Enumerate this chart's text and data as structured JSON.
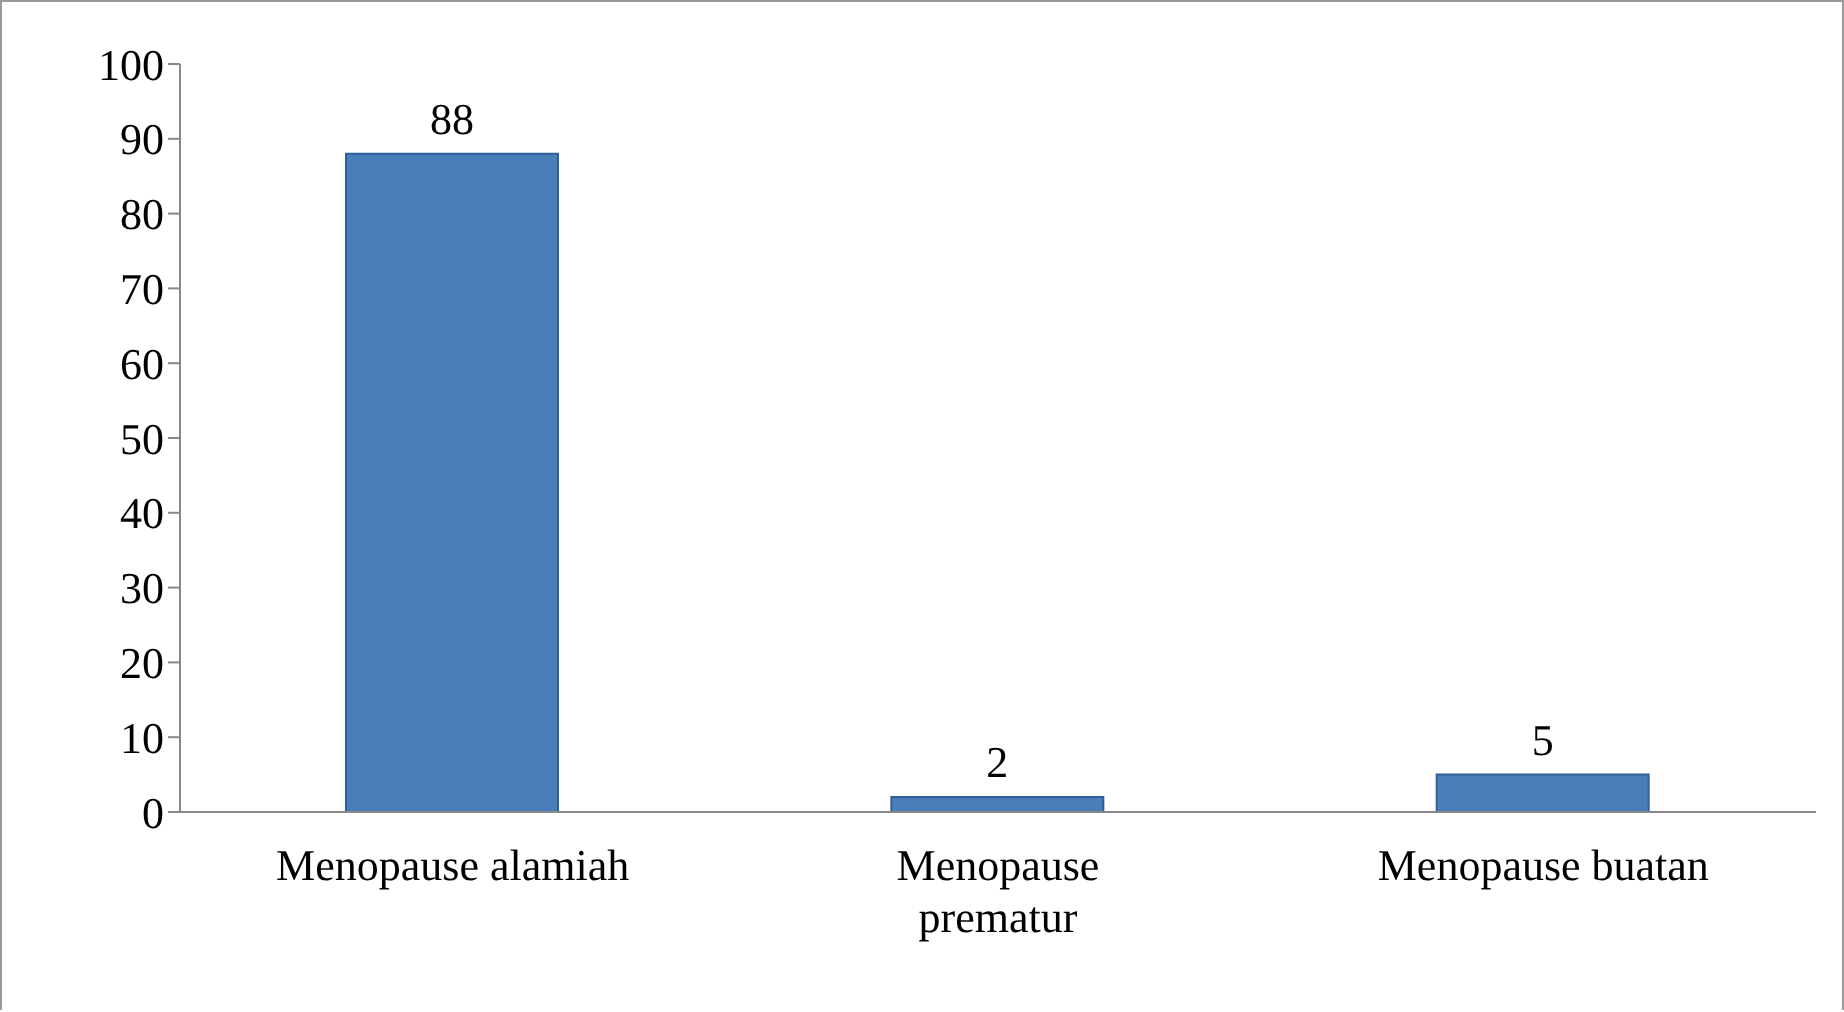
{
  "chart_data": {
    "type": "bar",
    "categories": [
      "Menopause alamiah",
      "Menopause prematur",
      "Menopause buatan"
    ],
    "values": [
      88,
      2,
      5
    ],
    "color": "#4a7ebb",
    "ylim": [
      0,
      100
    ],
    "yticks": [
      0,
      10,
      20,
      30,
      40,
      50,
      60,
      70,
      80,
      90,
      100
    ],
    "grid": false,
    "data_labels": true,
    "legend": false
  }
}
